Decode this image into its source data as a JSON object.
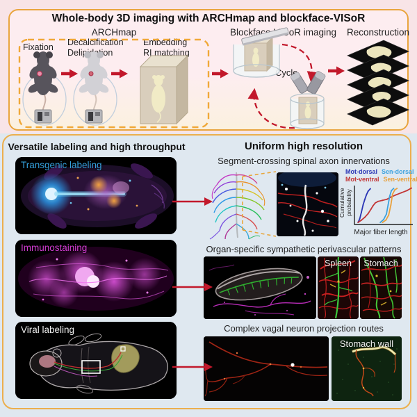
{
  "page": {
    "section_top_bg": "#f8e4e7",
    "section_bottom_bg": "#dfe8f0",
    "panel_border_color": "#e9a53e",
    "arrow_color": "#c2182b"
  },
  "top_panel": {
    "title": "Whole-body 3D imaging with ARCHmap and blockface-VISoR",
    "archmap_label": "ARCHmap",
    "steps": [
      {
        "line1": "Fixation",
        "line2": ""
      },
      {
        "line1": "Decalcification",
        "line2": "Delipidation"
      },
      {
        "line1": "Embedding",
        "line2": "RI matching"
      }
    ],
    "imaging_label": "Blockface-VISoR imaging",
    "cycle_label": "Cycle",
    "reconstruction_label": "Reconstruction"
  },
  "left_panel": {
    "title": "Versatile labeling and high throughput",
    "images": [
      {
        "label": "Transgenic labeling",
        "label_color": "#35a0dc"
      },
      {
        "label": "Immunostaining",
        "label_color": "#d43cd4"
      },
      {
        "label": "Viral labeling",
        "label_color": "#efefef"
      }
    ]
  },
  "right_panel": {
    "title": "Uniform high resolution",
    "sections": [
      {
        "heading": "Segment-crossing spinal axon innervations"
      },
      {
        "heading": "Organ-specific sympathetic perivascular patterns",
        "image_labels": [
          "Spleen",
          "Stomach"
        ]
      },
      {
        "heading": "Complex vagal neuron projection routes",
        "image_labels": [
          "Stomach wall"
        ]
      }
    ]
  },
  "chart_data": {
    "type": "line",
    "title": "",
    "xlabel": "Major fiber length",
    "ylabel": "Cumulative probability",
    "xlim": [
      0,
      1
    ],
    "ylim": [
      0,
      1
    ],
    "grid": false,
    "axis_tick_labels": "none",
    "legend_position": "top",
    "series": [
      {
        "name": "Mot-dorsal",
        "color": "#2a35b5",
        "x": [
          0.04,
          0.07,
          0.1,
          0.13,
          0.16,
          0.19,
          0.22,
          0.26
        ],
        "y": [
          0.02,
          0.12,
          0.3,
          0.5,
          0.65,
          0.78,
          0.88,
          0.95
        ]
      },
      {
        "name": "Mot-ventral",
        "color": "#c23535",
        "x": [
          0.04,
          0.1,
          0.16,
          0.22,
          0.27,
          0.31,
          0.35,
          0.4,
          0.48,
          0.56,
          0.63,
          0.72,
          0.82,
          0.92,
          1.0
        ],
        "y": [
          0.02,
          0.08,
          0.16,
          0.26,
          0.38,
          0.48,
          0.56,
          0.6,
          0.63,
          0.66,
          0.72,
          0.78,
          0.84,
          0.9,
          0.97
        ]
      },
      {
        "name": "Sen-dorsal",
        "color": "#3da2de",
        "x": [
          0.44,
          0.5,
          0.55,
          0.58,
          0.61,
          0.64,
          0.68
        ],
        "y": [
          0.02,
          0.1,
          0.25,
          0.5,
          0.75,
          0.9,
          0.96
        ]
      },
      {
        "name": "Sen-ventral",
        "color": "#e9a13d",
        "x": [
          0.48,
          0.54,
          0.59,
          0.63,
          0.66,
          0.7,
          0.74
        ],
        "y": [
          0.02,
          0.08,
          0.22,
          0.5,
          0.8,
          0.92,
          0.96
        ]
      }
    ]
  }
}
